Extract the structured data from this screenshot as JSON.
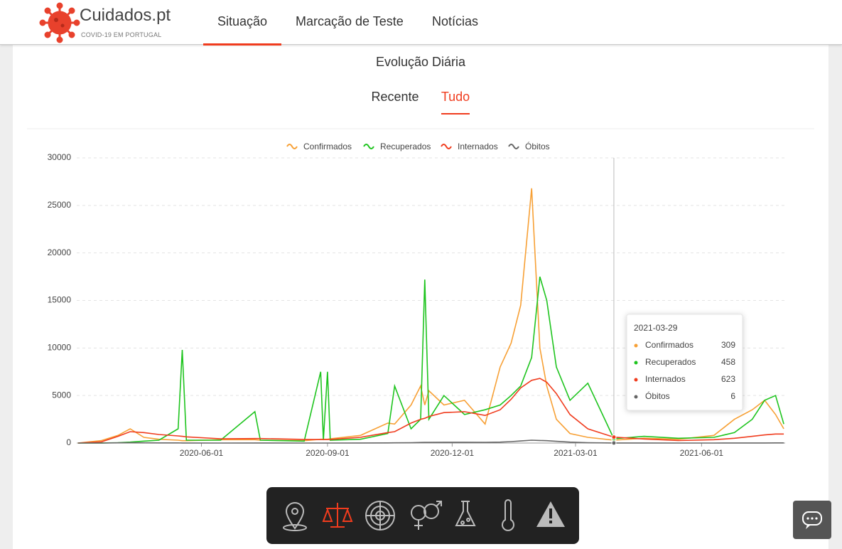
{
  "header": {
    "logo_title": "Cuidados.pt",
    "logo_subtitle": "COVID-19 EM PORTUGAL",
    "nav": [
      "Situação",
      "Marcação de Teste",
      "Notícias"
    ]
  },
  "section": {
    "title": "Evolução Diária",
    "tabs": [
      "Recente",
      "Tudo"
    ]
  },
  "chart_data": {
    "type": "line",
    "x": [
      "2020-03-03",
      "2020-03-20",
      "2020-04-01",
      "2020-04-10",
      "2020-04-20",
      "2020-05-01",
      "2020-05-15",
      "2020-05-18",
      "2020-05-21",
      "2020-06-15",
      "2020-07-10",
      "2020-07-14",
      "2020-08-15",
      "2020-08-27",
      "2020-08-29",
      "2020-09-01",
      "2020-09-03",
      "2020-09-25",
      "2020-10-15",
      "2020-10-20",
      "2020-11-01",
      "2020-11-08",
      "2020-11-11",
      "2020-11-14",
      "2020-11-25",
      "2020-12-10",
      "2020-12-25",
      "2021-01-05",
      "2021-01-13",
      "2021-01-20",
      "2021-01-28",
      "2021-02-03",
      "2021-02-08",
      "2021-02-15",
      "2021-02-25",
      "2021-03-10",
      "2021-03-29",
      "2021-04-20",
      "2021-05-15",
      "2021-06-10",
      "2021-06-25",
      "2021-07-08",
      "2021-07-17",
      "2021-07-25",
      "2021-07-31"
    ],
    "xlim": [
      "2020-03-02",
      "2021-08-01"
    ],
    "xticks": [
      "2020-06-01",
      "2020-09-01",
      "2020-12-01",
      "2021-03-01",
      "2021-06-01"
    ],
    "ylim": [
      0,
      30000
    ],
    "yticks": [
      0,
      5000,
      10000,
      15000,
      20000,
      25000,
      30000
    ],
    "grid": true,
    "series": [
      {
        "name": "Confirmados",
        "color": "#f7a035",
        "values": [
          2,
          260,
          800,
          1500,
          600,
          400,
          300,
          250,
          250,
          350,
          350,
          300,
          250,
          400,
          400,
          400,
          450,
          800,
          2100,
          2000,
          4000,
          6000,
          4000,
          5500,
          4000,
          4500,
          2000,
          8000,
          10500,
          14500,
          26800,
          10000,
          6000,
          2500,
          1000,
          600,
          309,
          500,
          400,
          800,
          2500,
          3500,
          4500,
          3000,
          1500
        ]
      },
      {
        "name": "Recuperados",
        "color": "#1ec41e",
        "values": [
          0,
          5,
          40,
          100,
          200,
          300,
          1500,
          9800,
          300,
          300,
          3300,
          300,
          200,
          7500,
          300,
          7500,
          300,
          400,
          1000,
          6000,
          1500,
          2500,
          17200,
          2500,
          5000,
          3000,
          3500,
          4000,
          5000,
          6000,
          9000,
          17500,
          15000,
          8000,
          4500,
          6300,
          458,
          700,
          500,
          600,
          1100,
          2500,
          4500,
          5000,
          2000
        ]
      },
      {
        "name": "Internados",
        "color": "#f03c1e",
        "values": [
          0,
          130,
          700,
          1200,
          1100,
          900,
          750,
          700,
          650,
          450,
          470,
          470,
          380,
          370,
          370,
          370,
          380,
          600,
          1100,
          1200,
          2100,
          2500,
          2600,
          2800,
          3200,
          3300,
          2900,
          3500,
          4600,
          5800,
          6600,
          6800,
          6400,
          5200,
          3000,
          1500,
          623,
          430,
          260,
          350,
          500,
          700,
          850,
          950,
          950
        ]
      },
      {
        "name": "Óbitos",
        "color": "#666666",
        "values": [
          0,
          3,
          20,
          30,
          25,
          15,
          12,
          10,
          10,
          3,
          4,
          4,
          3,
          3,
          3,
          3,
          3,
          8,
          15,
          20,
          40,
          60,
          65,
          70,
          80,
          80,
          70,
          100,
          150,
          220,
          300,
          270,
          250,
          180,
          100,
          40,
          6,
          4,
          3,
          3,
          4,
          6,
          10,
          12,
          12
        ]
      }
    ]
  }
}
